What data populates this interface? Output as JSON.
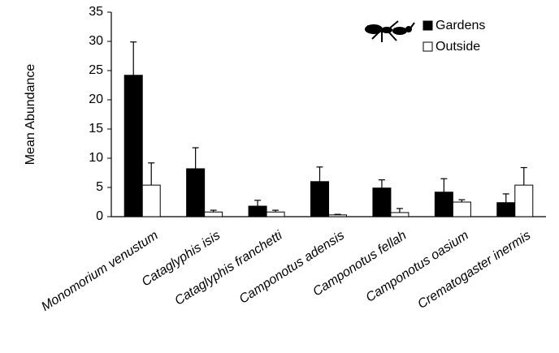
{
  "chart_data": {
    "type": "bar",
    "y_label": "Mean Abundance",
    "categories": [
      "Monomorium venustum",
      "Cataglyphis isis",
      "Cataglyphis franchetti",
      "Camponotus adensis",
      "Camponotus fellah",
      "Camponotus oasium",
      "Crematogaster inermis"
    ],
    "series": [
      {
        "name": "Gardens",
        "color": "#000000",
        "values": [
          24.2,
          8.2,
          1.8,
          6.0,
          4.9,
          4.2,
          2.4
        ],
        "errors": [
          5.7,
          3.6,
          1.0,
          2.5,
          1.4,
          2.3,
          1.5
        ]
      },
      {
        "name": "Outside",
        "color": "#ffffff",
        "values": [
          5.4,
          0.8,
          0.8,
          0.3,
          0.7,
          2.5,
          5.4
        ],
        "errors": [
          3.8,
          0.3,
          0.3,
          0.1,
          0.7,
          0.4,
          3.0
        ]
      }
    ],
    "ylim": [
      0,
      35
    ],
    "yticks": [
      0,
      5,
      10,
      15,
      20,
      25,
      30,
      35
    ],
    "grid": false,
    "legend": "top-right"
  }
}
